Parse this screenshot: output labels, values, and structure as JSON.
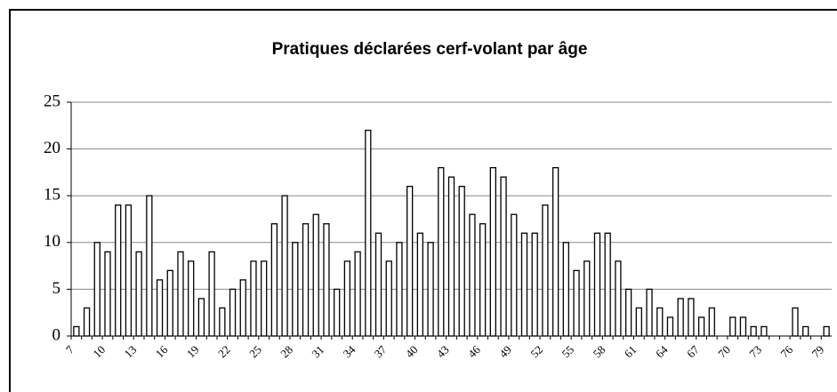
{
  "chart_data": {
    "type": "bar",
    "title": "Pratiques déclarées cerf-volant par âge",
    "categories": [
      "7",
      null,
      null,
      "10",
      null,
      null,
      "13",
      null,
      null,
      "16",
      null,
      null,
      "19",
      null,
      null,
      "22",
      null,
      null,
      "25",
      null,
      null,
      "28",
      null,
      null,
      "31",
      null,
      null,
      "34",
      null,
      null,
      "37",
      null,
      null,
      "40",
      null,
      null,
      "43",
      null,
      null,
      "46",
      null,
      null,
      "49",
      null,
      null,
      "52",
      null,
      null,
      "55",
      null,
      null,
      "58",
      null,
      null,
      "61",
      null,
      null,
      "64",
      null,
      null,
      "67",
      null,
      null,
      "70",
      null,
      null,
      "73",
      null,
      null,
      "76",
      null,
      null,
      "79"
    ],
    "values": [
      1,
      3,
      10,
      9,
      14,
      14,
      9,
      15,
      6,
      7,
      9,
      8,
      4,
      9,
      3,
      5,
      6,
      8,
      8,
      12,
      15,
      10,
      12,
      13,
      12,
      5,
      8,
      9,
      22,
      11,
      8,
      10,
      16,
      11,
      10,
      18,
      17,
      16,
      13,
      12,
      18,
      17,
      13,
      11,
      11,
      14,
      18,
      10,
      7,
      8,
      11,
      11,
      8,
      5,
      3,
      5,
      3,
      2,
      4,
      4,
      2,
      3,
      0,
      2,
      2,
      1,
      1,
      0,
      0,
      3,
      1,
      0,
      1
    ],
    "color": "#ffffff",
    "ylim": [
      0,
      25
    ],
    "yticks": [
      0,
      5,
      10,
      15,
      20,
      25
    ],
    "grid": true
  }
}
